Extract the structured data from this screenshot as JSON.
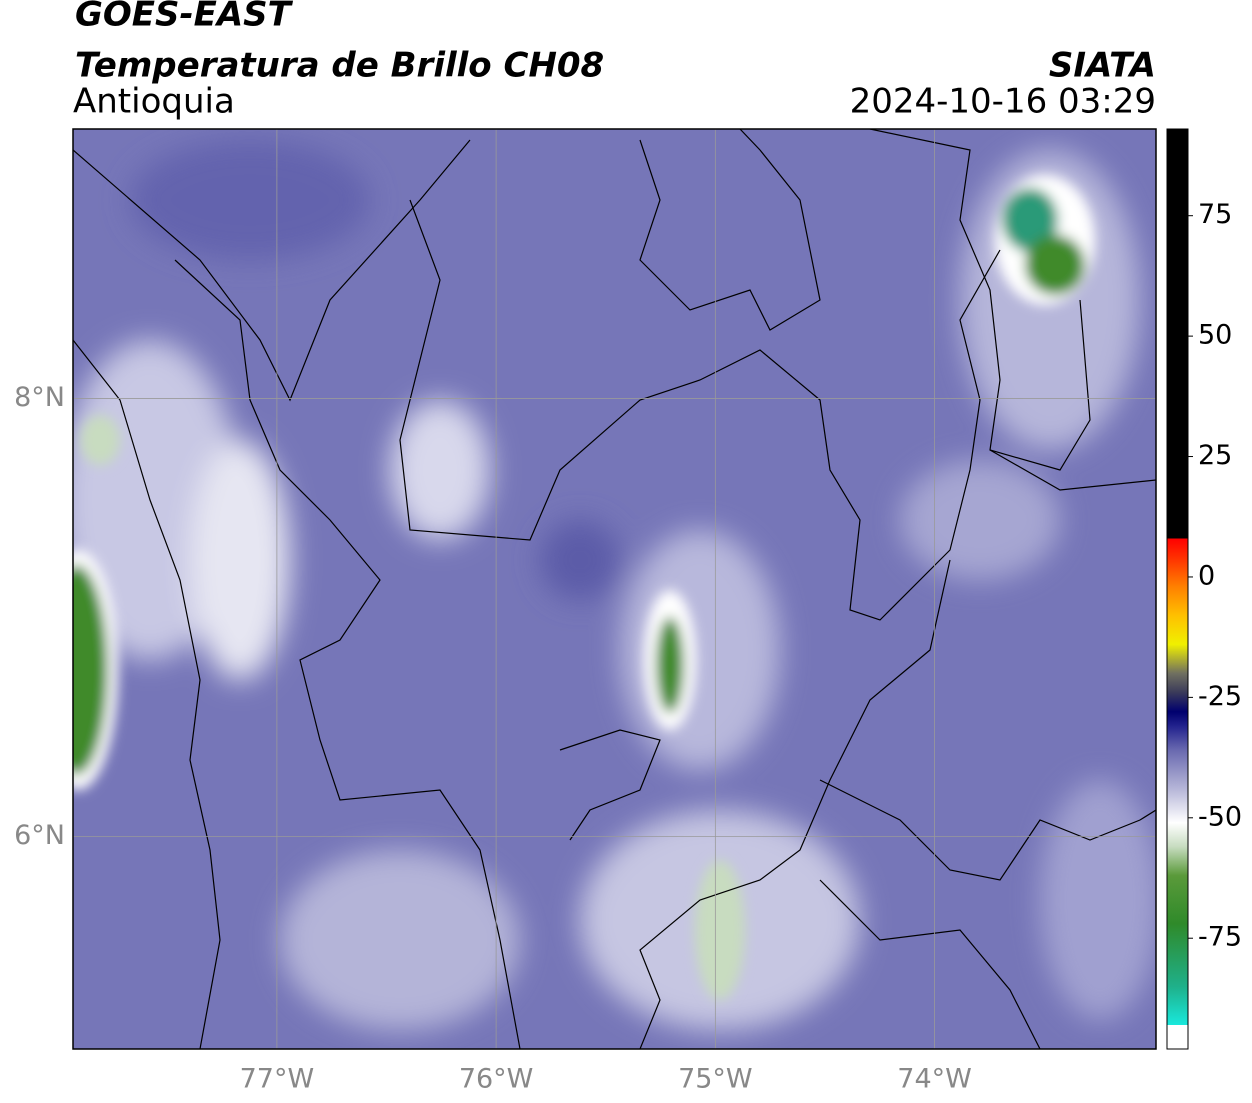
{
  "header": {
    "title": "GOES-EAST",
    "subtitle": "Temperatura de Brillo CH08",
    "region": "Antioquia",
    "source": "SIATA",
    "timestamp": "2024-10-16 03:29"
  },
  "map": {
    "xlim": [
      -77.93,
      -72.99
    ],
    "ylim": [
      5.03,
      9.23
    ],
    "xticks": [
      {
        "value": -77,
        "label": "77°W"
      },
      {
        "value": -76,
        "label": "76°W"
      },
      {
        "value": -75,
        "label": "75°W"
      },
      {
        "value": -74,
        "label": "74°W"
      }
    ],
    "yticks": [
      {
        "value": 8,
        "label": "8°N"
      },
      {
        "value": 6,
        "label": "6°N"
      }
    ],
    "grid": true,
    "grid_color": "#9a9a9a"
  },
  "colorbar": {
    "clim": [
      -98,
      93
    ],
    "ticks": [
      75,
      50,
      25,
      0,
      -25,
      -50,
      -75
    ],
    "colormap": [
      {
        "value": -98,
        "color": "#ffffff"
      },
      {
        "value": -93,
        "color": "#ffffff"
      },
      {
        "value": -93,
        "color": "#19e8dc"
      },
      {
        "value": -85,
        "color": "#1fb08a"
      },
      {
        "value": -72,
        "color": "#2f8a2a"
      },
      {
        "value": -62,
        "color": "#5a9a3a"
      },
      {
        "value": -56,
        "color": "#c7dcc0"
      },
      {
        "value": -51,
        "color": "#ffffff"
      },
      {
        "value": -44,
        "color": "#b6b6d8"
      },
      {
        "value": -36,
        "color": "#6a6ab0"
      },
      {
        "value": -31,
        "color": "#23238e"
      },
      {
        "value": -28,
        "color": "#00006e"
      },
      {
        "value": -24,
        "color": "#3a3a5a"
      },
      {
        "value": -20,
        "color": "#707060"
      },
      {
        "value": -14,
        "color": "#f0f000"
      },
      {
        "value": -8,
        "color": "#ffc000"
      },
      {
        "value": -2,
        "color": "#ff8000"
      },
      {
        "value": 4,
        "color": "#ff3000"
      },
      {
        "value": 8,
        "color": "#ff0000"
      },
      {
        "value": 8,
        "color": "#000000"
      },
      {
        "value": 93,
        "color": "#000000"
      }
    ]
  }
}
